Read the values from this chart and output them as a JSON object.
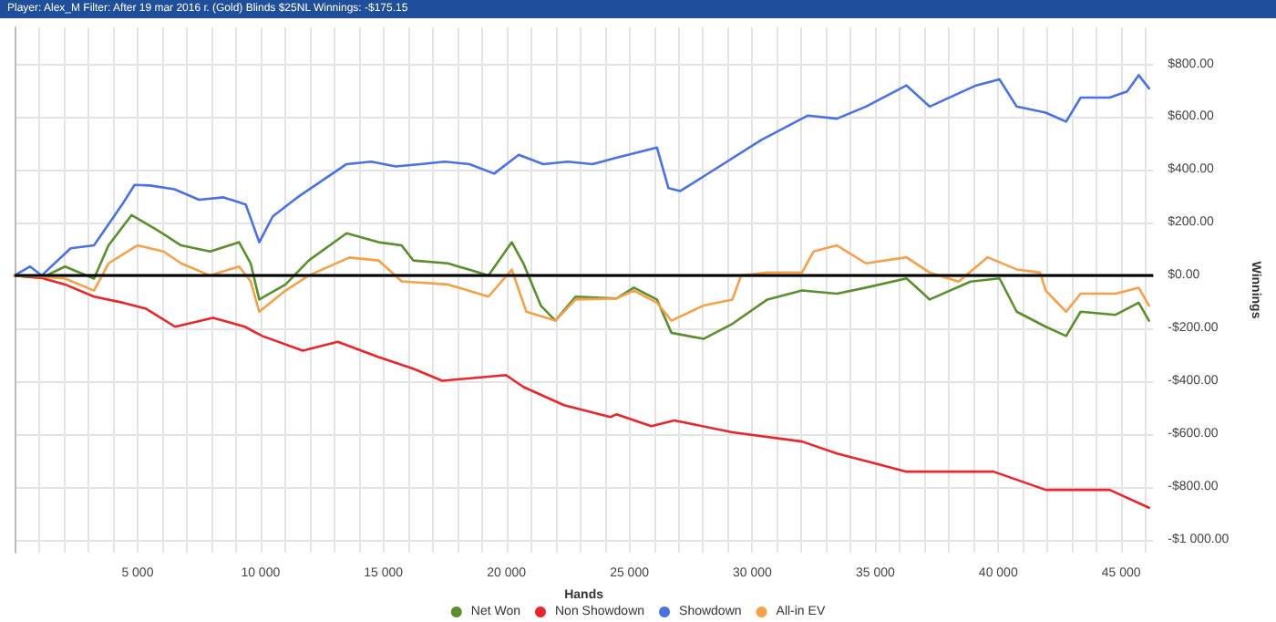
{
  "chart_data": {
    "type": "line",
    "title": "Player: Alex_M Filter: After 19 mar 2016 г. (Gold) Blinds $25NL Winnings: -$175.15",
    "xlabel": "Hands",
    "ylabel": "Winnings",
    "xlim": [
      0,
      46300
    ],
    "ylim": [
      -1050,
      940
    ],
    "xticks": [
      {
        "value": 1000,
        "label": null
      },
      {
        "value": 2000,
        "label": null
      },
      {
        "value": 3000,
        "label": null
      },
      {
        "value": 4000,
        "label": null
      },
      {
        "value": 5000,
        "label": "5 000"
      },
      {
        "value": 6000,
        "label": null
      },
      {
        "value": 7000,
        "label": null
      },
      {
        "value": 8000,
        "label": null
      },
      {
        "value": 9000,
        "label": null
      },
      {
        "value": 10000,
        "label": "10 000"
      },
      {
        "value": 11000,
        "label": null
      },
      {
        "value": 12000,
        "label": null
      },
      {
        "value": 13000,
        "label": null
      },
      {
        "value": 14000,
        "label": null
      },
      {
        "value": 15000,
        "label": "15 000"
      },
      {
        "value": 16000,
        "label": null
      },
      {
        "value": 17000,
        "label": null
      },
      {
        "value": 18000,
        "label": null
      },
      {
        "value": 19000,
        "label": null
      },
      {
        "value": 20000,
        "label": "20 000"
      },
      {
        "value": 21000,
        "label": null
      },
      {
        "value": 22000,
        "label": null
      },
      {
        "value": 23000,
        "label": null
      },
      {
        "value": 24000,
        "label": null
      },
      {
        "value": 25000,
        "label": "25 000"
      },
      {
        "value": 26000,
        "label": null
      },
      {
        "value": 27000,
        "label": null
      },
      {
        "value": 28000,
        "label": null
      },
      {
        "value": 29000,
        "label": null
      },
      {
        "value": 30000,
        "label": "30 000"
      },
      {
        "value": 31000,
        "label": null
      },
      {
        "value": 32000,
        "label": null
      },
      {
        "value": 33000,
        "label": null
      },
      {
        "value": 34000,
        "label": null
      },
      {
        "value": 35000,
        "label": "35 000"
      },
      {
        "value": 36000,
        "label": null
      },
      {
        "value": 37000,
        "label": null
      },
      {
        "value": 38000,
        "label": null
      },
      {
        "value": 39000,
        "label": null
      },
      {
        "value": 40000,
        "label": "40 000"
      },
      {
        "value": 41000,
        "label": null
      },
      {
        "value": 42000,
        "label": null
      },
      {
        "value": 43000,
        "label": null
      },
      {
        "value": 44000,
        "label": null
      },
      {
        "value": 45000,
        "label": "45 000"
      },
      {
        "value": 46000,
        "label": null
      }
    ],
    "yticks": [
      {
        "value": -1000,
        "label": "-$1 000.00"
      },
      {
        "value": -800,
        "label": "-$800.00"
      },
      {
        "value": -600,
        "label": "-$600.00"
      },
      {
        "value": -400,
        "label": "-$400.00"
      },
      {
        "value": -200,
        "label": "-$200.00"
      },
      {
        "value": 0,
        "label": "$0.00"
      },
      {
        "value": 200,
        "label": "$200.00"
      },
      {
        "value": 400,
        "label": "$400.00"
      },
      {
        "value": 600,
        "label": "$600.00"
      },
      {
        "value": 800,
        "label": "$800.00"
      }
    ],
    "grid": true,
    "legend": "bottom",
    "marker": "none",
    "line_style": "solid",
    "ref_lines": [
      {
        "axis": "y",
        "value": 0,
        "label": null,
        "color": "#000000"
      }
    ],
    "series": [
      {
        "name": "Net Won",
        "color": "#5b8f2e",
        "x": [
          0,
          1100,
          2050,
          3230,
          3820,
          4760,
          5820,
          6770,
          7950,
          9130,
          9600,
          9950,
          11020,
          11960,
          13500,
          14800,
          15740,
          16210,
          17620,
          19270,
          20220,
          20690,
          21400,
          21990,
          22810,
          24470,
          25180,
          26120,
          26710,
          28010,
          29190,
          30610,
          32020,
          33440,
          34620,
          36270,
          37210,
          38870,
          40050,
          40750,
          41930,
          42760,
          43350,
          44770,
          45710,
          46130
        ],
        "values": [
          0,
          -9,
          34,
          -12,
          114,
          229,
          171,
          114,
          91,
          126,
          46,
          -91,
          -34,
          57,
          160,
          126,
          114,
          57,
          46,
          0,
          126,
          46,
          -114,
          -171,
          -80,
          -87,
          -46,
          -91,
          -217,
          -240,
          -183,
          -91,
          -57,
          -69,
          -46,
          -11,
          -91,
          -23,
          -11,
          -137,
          -194,
          -229,
          -137,
          -149,
          -103,
          -171
        ]
      },
      {
        "name": "Non Showdown",
        "color": "#e8262b",
        "x": [
          0,
          1100,
          2050,
          3230,
          4410,
          5350,
          6530,
          8070,
          9360,
          10070,
          11720,
          13140,
          14800,
          16210,
          17390,
          19980,
          20690,
          22340,
          24230,
          24470,
          25890,
          26830,
          29190,
          32020,
          33440,
          36270,
          38630,
          39810,
          41930,
          44530,
          46130
        ],
        "values": [
          0,
          -9,
          -34,
          -80,
          -103,
          -126,
          -194,
          -160,
          -194,
          -229,
          -285,
          -251,
          -309,
          -353,
          -399,
          -377,
          -422,
          -491,
          -536,
          -526,
          -571,
          -549,
          -594,
          -629,
          -674,
          -743,
          -743,
          -743,
          -812,
          -812,
          -880
        ]
      },
      {
        "name": "Showdown",
        "color": "#4a72e0",
        "x": [
          0,
          630,
          1100,
          2280,
          3230,
          4410,
          4880,
          5500,
          6500,
          7500,
          8500,
          9400,
          9950,
          10500,
          11500,
          12500,
          13500,
          14500,
          15500,
          16500,
          17500,
          18500,
          19500,
          20500,
          21500,
          22500,
          23500,
          24470,
          26120,
          26590,
          27070,
          28250,
          30370,
          32260,
          33440,
          34620,
          36270,
          37210,
          39100,
          40050,
          40750,
          41930,
          42760,
          43350,
          44530,
          45240,
          45710,
          46130
        ],
        "values": [
          0,
          34,
          0,
          103,
          114,
          274,
          343,
          341,
          327,
          287,
          296,
          269,
          126,
          224,
          296,
          359,
          422,
          431,
          413,
          422,
          431,
          422,
          386,
          457,
          422,
          431,
          422,
          446,
          485,
          331,
          320,
          389,
          514,
          606,
          594,
          640,
          720,
          640,
          720,
          743,
          640,
          617,
          583,
          674,
          674,
          697,
          759,
          709
        ]
      },
      {
        "name": "All-in EV",
        "color": "#f5a04a",
        "x": [
          0,
          1100,
          2050,
          3230,
          3820,
          4990,
          6060,
          6770,
          7950,
          9130,
          9600,
          9950,
          11020,
          11960,
          13610,
          14800,
          15740,
          17620,
          19270,
          20220,
          20810,
          21990,
          22810,
          24470,
          25180,
          26120,
          26710,
          28010,
          29190,
          29540,
          30610,
          32020,
          32490,
          33440,
          34620,
          36270,
          37210,
          38390,
          39570,
          40750,
          41700,
          41930,
          42760,
          43350,
          44770,
          45710,
          46130
        ],
        "values": [
          0,
          -4,
          -12,
          -57,
          46,
          114,
          91,
          46,
          0,
          34,
          -22,
          -137,
          -57,
          0,
          68,
          57,
          -22,
          -34,
          -80,
          22,
          -137,
          -171,
          -91,
          -87,
          -57,
          -103,
          -171,
          -114,
          -91,
          0,
          11,
          11,
          91,
          114,
          46,
          69,
          11,
          -23,
          69,
          23,
          11,
          -57,
          -137,
          -69,
          -69,
          -46,
          -114
        ]
      }
    ]
  }
}
